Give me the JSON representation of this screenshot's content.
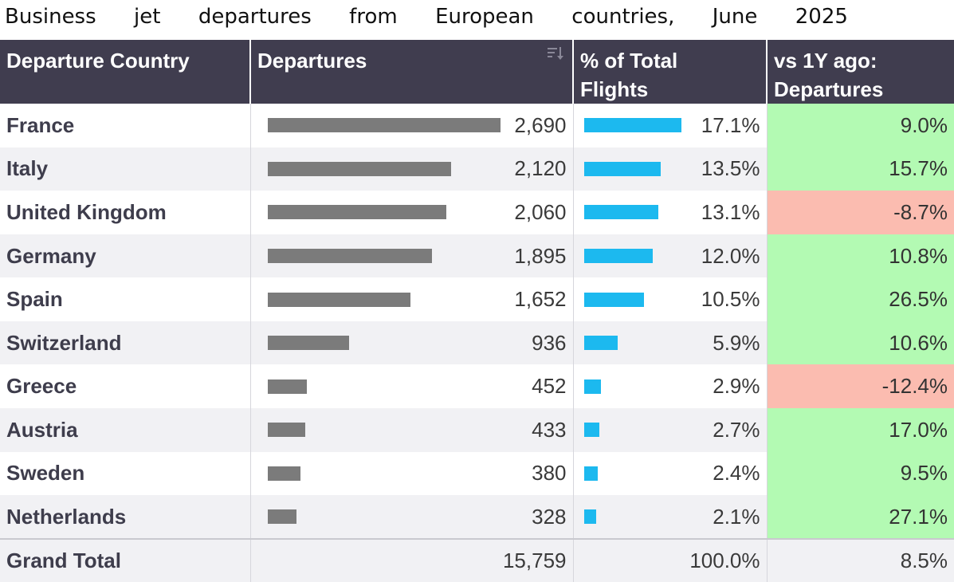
{
  "title_words": [
    "Business",
    "jet",
    "departures",
    "from",
    "European",
    "countries,",
    "June",
    "2025"
  ],
  "colors": {
    "header_bg": "#403d4f",
    "bar_departures": "#7b7b7b",
    "bar_share": "#1cb9ef",
    "positive": "#b3fab3",
    "negative": "#fbbcb0"
  },
  "header": {
    "country": "Departure Country",
    "departures": "Departures",
    "share_line1": "% of Total",
    "share_line2": "Flights",
    "change_line1": "vs 1Y ago:",
    "change_line2": "Departures",
    "sort_icon": "sort-descending-icon"
  },
  "chart_data": {
    "type": "table",
    "title": "Business jet departures from European countries, June 2025",
    "columns": [
      "Departure Country",
      "Departures",
      "% of Total Flights",
      "vs 1Y ago: Departures"
    ],
    "max_departures": 2690,
    "max_share": 17.1,
    "rows": [
      {
        "country": "France",
        "departures": 2690,
        "departures_label": "2,690",
        "share": 17.1,
        "share_label": "17.1%",
        "change": 9.0,
        "change_label": "9.0%"
      },
      {
        "country": "Italy",
        "departures": 2120,
        "departures_label": "2,120",
        "share": 13.5,
        "share_label": "13.5%",
        "change": 15.7,
        "change_label": "15.7%"
      },
      {
        "country": "United Kingdom",
        "departures": 2060,
        "departures_label": "2,060",
        "share": 13.1,
        "share_label": "13.1%",
        "change": -8.7,
        "change_label": "-8.7%"
      },
      {
        "country": "Germany",
        "departures": 1895,
        "departures_label": "1,895",
        "share": 12.0,
        "share_label": "12.0%",
        "change": 10.8,
        "change_label": "10.8%"
      },
      {
        "country": "Spain",
        "departures": 1652,
        "departures_label": "1,652",
        "share": 10.5,
        "share_label": "10.5%",
        "change": 26.5,
        "change_label": "26.5%"
      },
      {
        "country": "Switzerland",
        "departures": 936,
        "departures_label": "936",
        "share": 5.9,
        "share_label": "5.9%",
        "change": 10.6,
        "change_label": "10.6%"
      },
      {
        "country": "Greece",
        "departures": 452,
        "departures_label": "452",
        "share": 2.9,
        "share_label": "2.9%",
        "change": -12.4,
        "change_label": "-12.4%"
      },
      {
        "country": "Austria",
        "departures": 433,
        "departures_label": "433",
        "share": 2.7,
        "share_label": "2.7%",
        "change": 17.0,
        "change_label": "17.0%"
      },
      {
        "country": "Sweden",
        "departures": 380,
        "departures_label": "380",
        "share": 2.4,
        "share_label": "2.4%",
        "change": 9.5,
        "change_label": "9.5%"
      },
      {
        "country": "Netherlands",
        "departures": 328,
        "departures_label": "328",
        "share": 2.1,
        "share_label": "2.1%",
        "change": 27.1,
        "change_label": "27.1%"
      }
    ],
    "total": {
      "label": "Grand Total",
      "departures_label": "15,759",
      "share_label": "100.0%",
      "change_label": "8.5%"
    }
  }
}
